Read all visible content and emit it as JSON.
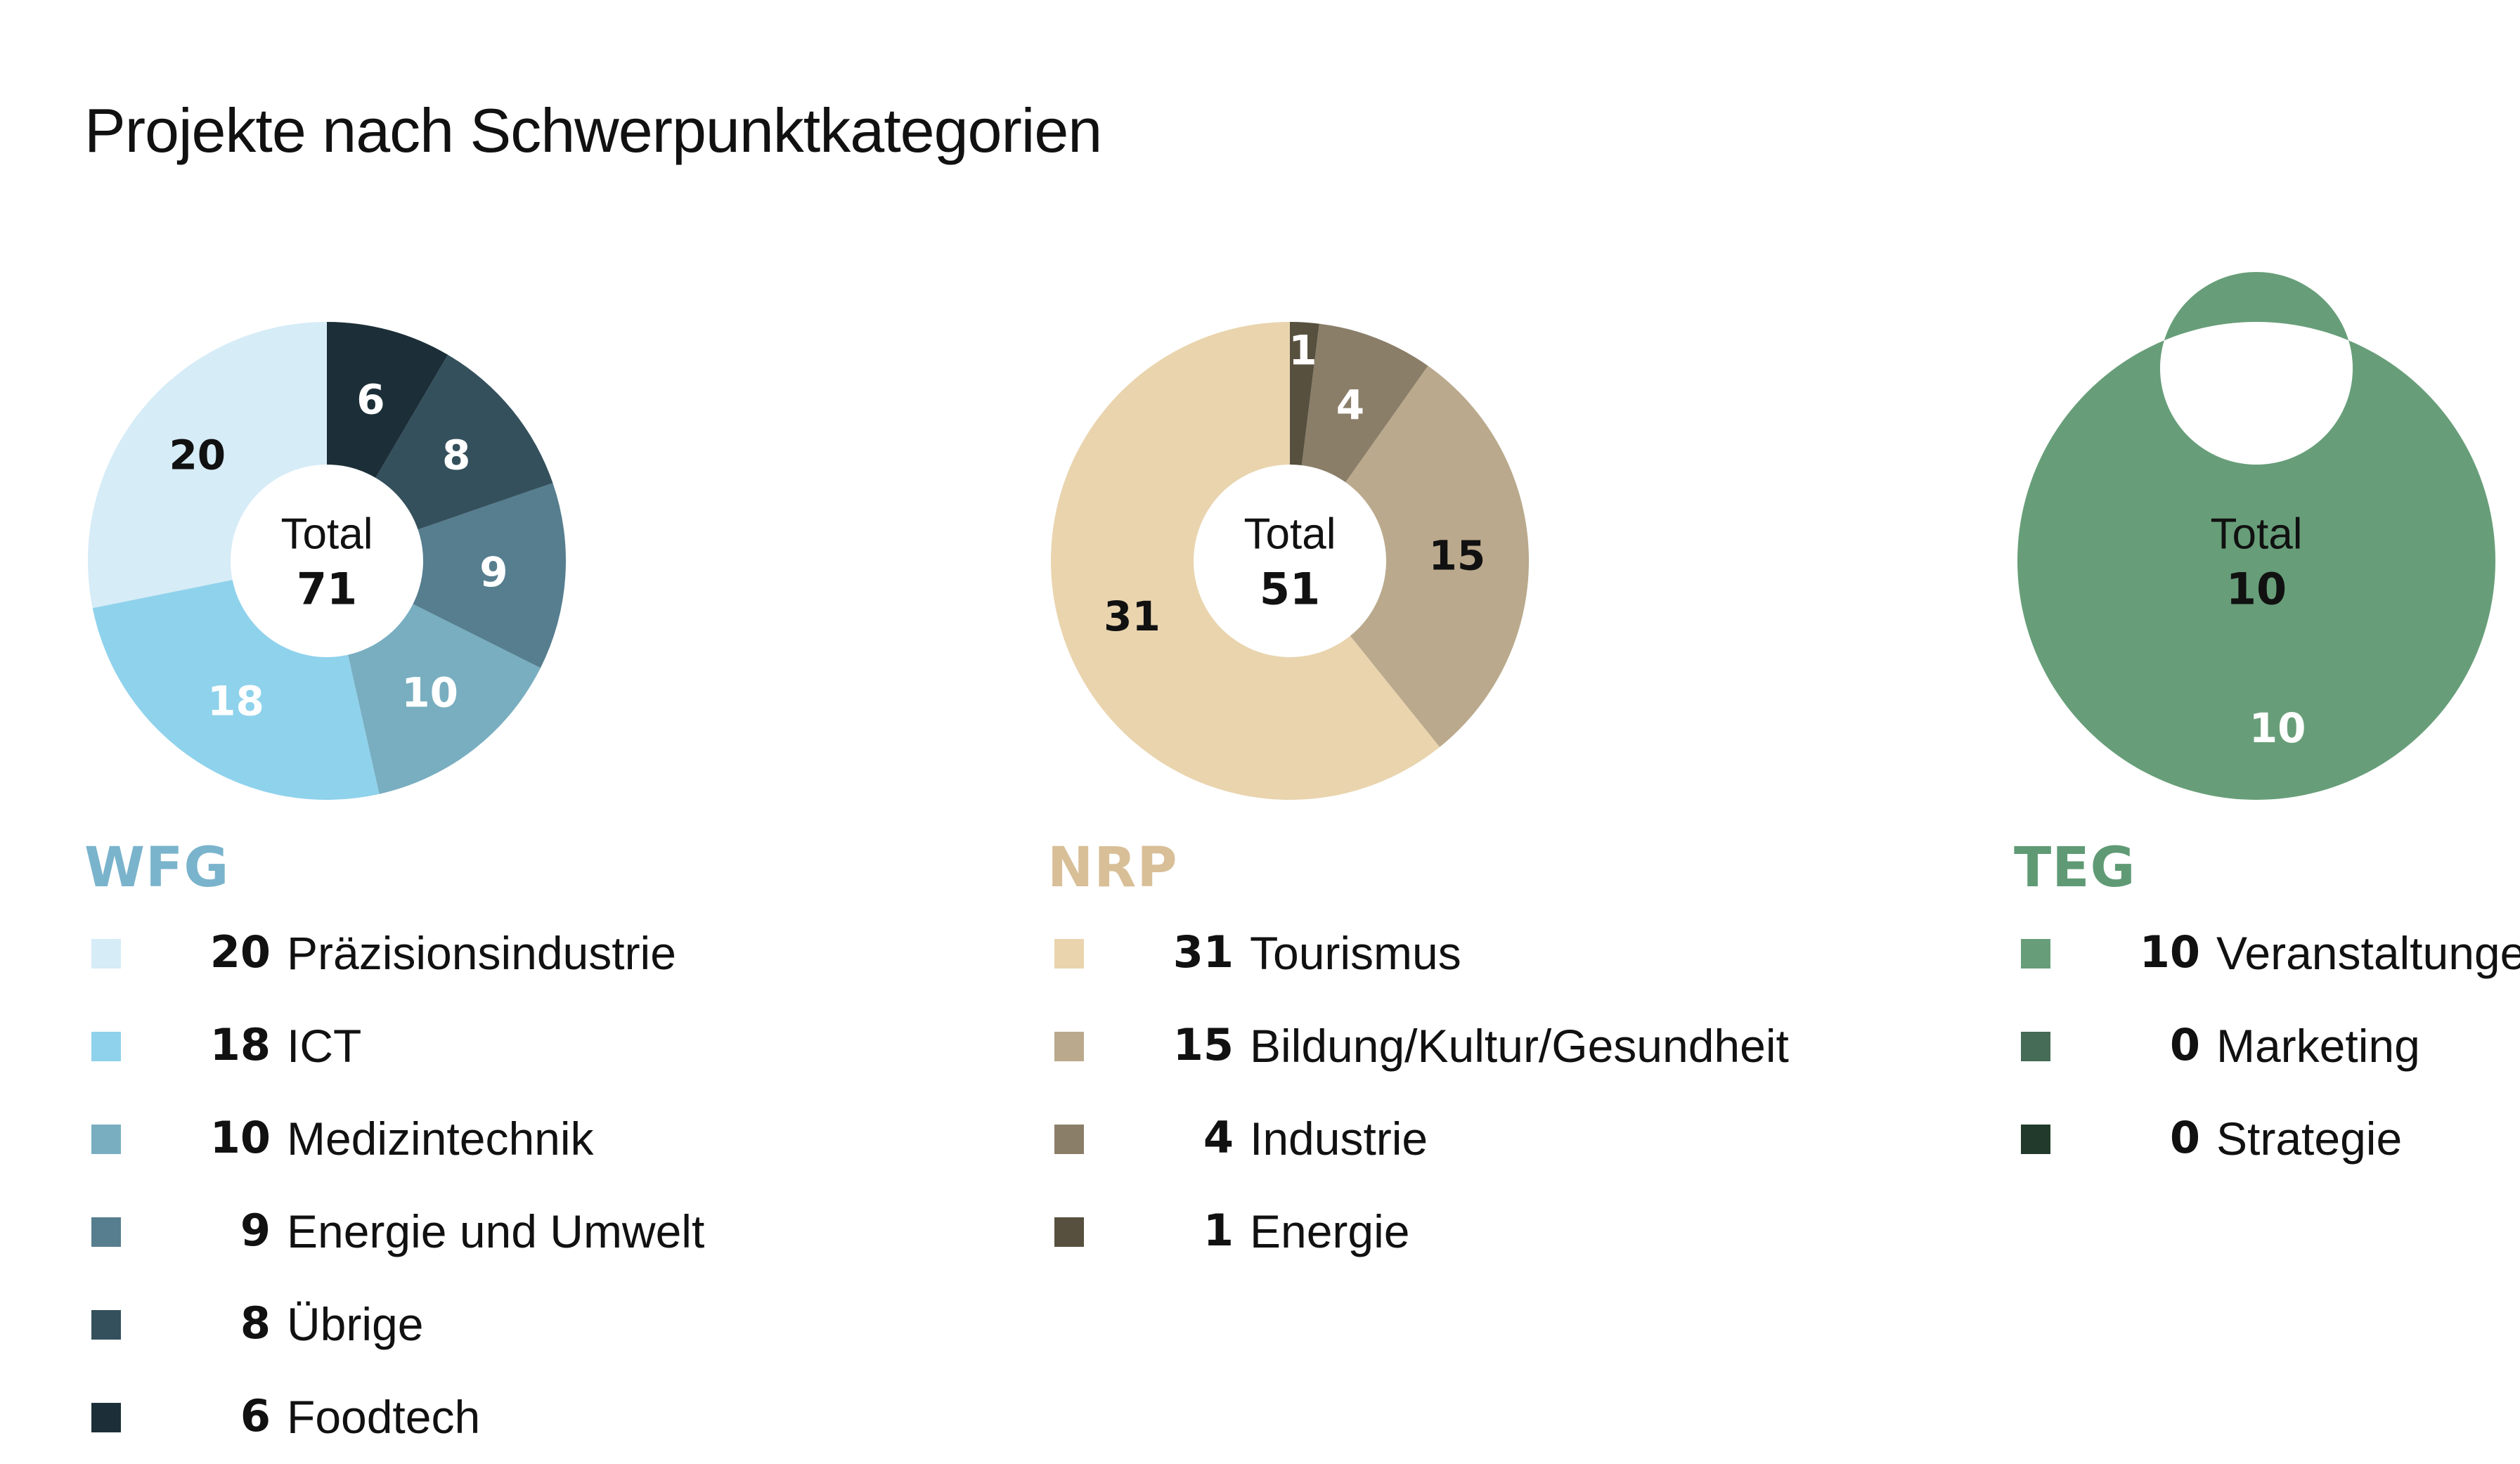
{
  "title": "Projekte nach Schwerpunktkategorien",
  "chart_data": [
    {
      "type": "pie",
      "name": "WFG",
      "name_color": "#7ab3cc",
      "center_label": "Total",
      "total": 71,
      "categories": [
        "Präzisionsindustrie",
        "ICT",
        "Medizintechnik",
        "Energie und Umwelt",
        "Übrige",
        "Foodtech"
      ],
      "values": [
        20,
        18,
        10,
        9,
        8,
        6
      ],
      "colors": [
        "#d6ecf7",
        "#8fd2ec",
        "#78aec0",
        "#567e8f",
        "#34505c",
        "#1c2f38"
      ],
      "label_colors": [
        "#111111",
        "#ffffff",
        "#ffffff",
        "#ffffff",
        "#ffffff",
        "#ffffff"
      ]
    },
    {
      "type": "pie",
      "name": "NRP",
      "name_color": "#d8bf98",
      "center_label": "Total",
      "total": 51,
      "categories": [
        "Tourismus",
        "Bildung/Kultur/Gesundheit",
        "Industrie",
        "Energie"
      ],
      "values": [
        31,
        15,
        4,
        1
      ],
      "colors": [
        "#e9d4ae",
        "#baa98c",
        "#8b7e69",
        "#57503f"
      ],
      "label_colors": [
        "#111111",
        "#111111",
        "#ffffff",
        "#ffffff"
      ]
    },
    {
      "type": "pie",
      "name": "TEG",
      "name_color": "#5f9a75",
      "center_label": "Total",
      "total": 10,
      "categories": [
        "Veranstaltungen",
        "Marketing",
        "Strategie"
      ],
      "values": [
        10,
        0,
        0
      ],
      "colors": [
        "#679e79",
        "#466b56",
        "#213a2b"
      ],
      "label_colors": [
        "#ffffff",
        "#ffffff",
        "#ffffff"
      ]
    }
  ]
}
